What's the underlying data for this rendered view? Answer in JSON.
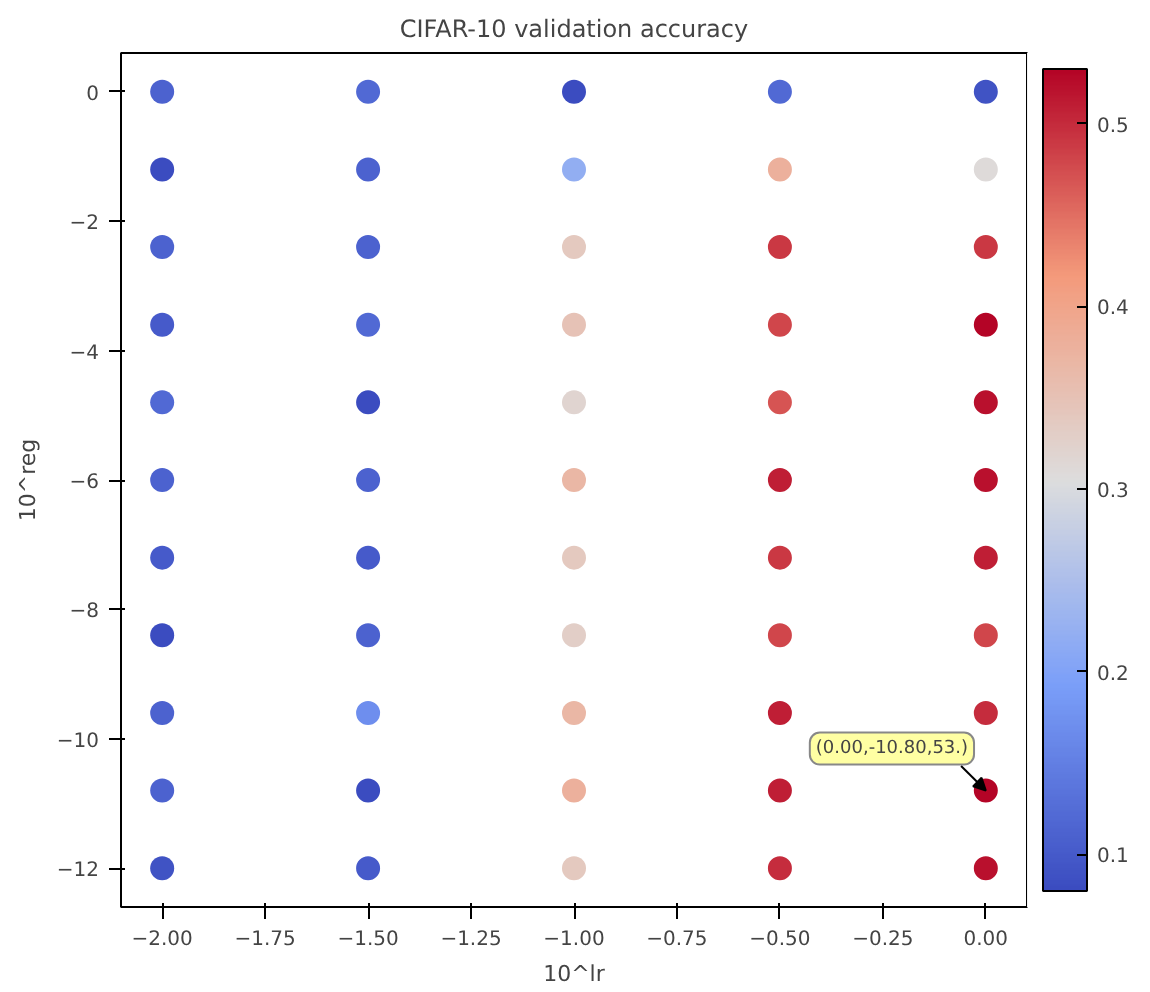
{
  "chart_data": {
    "type": "scatter",
    "title": "CIFAR-10 validation accuracy",
    "xlabel": "10^lr",
    "ylabel": "10^reg",
    "x": [
      -2,
      -2,
      -2,
      -2,
      -2,
      -2,
      -2,
      -2,
      -2,
      -2,
      -2,
      -1.5,
      -1.5,
      -1.5,
      -1.5,
      -1.5,
      -1.5,
      -1.5,
      -1.5,
      -1.5,
      -1.5,
      -1.5,
      -1,
      -1,
      -1,
      -1,
      -1,
      -1,
      -1,
      -1,
      -1,
      -1,
      -1,
      -0.5,
      -0.5,
      -0.5,
      -0.5,
      -0.5,
      -0.5,
      -0.5,
      -0.5,
      -0.5,
      -0.5,
      -0.5,
      0,
      0,
      0,
      0,
      0,
      0,
      0,
      0,
      0,
      0,
      0
    ],
    "values": [
      0,
      -1.2,
      -2.4,
      -3.6,
      -4.8,
      -6,
      -7.2,
      -8.4,
      -9.6,
      -10.8,
      -12,
      0,
      -1.2,
      -2.4,
      -3.6,
      -4.8,
      -6,
      -7.2,
      -8.4,
      -9.6,
      -10.8,
      -12,
      0,
      -1.2,
      -2.4,
      -3.6,
      -4.8,
      -6,
      -7.2,
      -8.4,
      -9.6,
      -10.8,
      -12,
      0,
      -1.2,
      -2.4,
      -3.6,
      -4.8,
      -6,
      -7.2,
      -8.4,
      -9.6,
      -10.8,
      -12,
      0,
      -1.2,
      -2.4,
      -3.6,
      -4.8,
      -6,
      -7.2,
      -8.4,
      -9.6,
      -10.8,
      -12
    ],
    "cvalues": [
      0.11,
      0.08,
      0.11,
      0.1,
      0.12,
      0.11,
      0.1,
      0.08,
      0.11,
      0.11,
      0.09,
      0.12,
      0.11,
      0.11,
      0.12,
      0.08,
      0.11,
      0.1,
      0.11,
      0.17,
      0.08,
      0.1,
      0.08,
      0.22,
      0.34,
      0.35,
      0.32,
      0.37,
      0.34,
      0.33,
      0.37,
      0.38,
      0.34,
      0.12,
      0.38,
      0.49,
      0.48,
      0.47,
      0.51,
      0.49,
      0.48,
      0.51,
      0.51,
      0.5,
      0.09,
      0.31,
      0.49,
      0.53,
      0.52,
      0.52,
      0.51,
      0.48,
      0.5,
      0.53,
      0.52
    ],
    "clim": [
      0.08,
      0.53
    ],
    "cticks": [
      0.1,
      0.2,
      0.3,
      0.4,
      0.5
    ],
    "xlim": [
      -2.1,
      0.1
    ],
    "ylim": [
      -12.6,
      0.6
    ],
    "xticks": [
      {
        "value": -2,
        "label": "−2.00"
      },
      {
        "value": -1.75,
        "label": "−1.75"
      },
      {
        "value": -1.5,
        "label": "−1.50"
      },
      {
        "value": -1.25,
        "label": "−1.25"
      },
      {
        "value": -1,
        "label": "−1.00"
      },
      {
        "value": -0.75,
        "label": "−0.75"
      },
      {
        "value": -0.5,
        "label": "−0.50"
      },
      {
        "value": -0.25,
        "label": "−0.25"
      },
      {
        "value": 0,
        "label": "0.00"
      }
    ],
    "yticks": [
      {
        "value": -12,
        "label": "−12"
      },
      {
        "value": -10,
        "label": "−10"
      },
      {
        "value": -8,
        "label": "−8"
      },
      {
        "value": -6,
        "label": "−6"
      },
      {
        "value": -4,
        "label": "−4"
      },
      {
        "value": -2,
        "label": "−2"
      },
      0
    ],
    "annotations": [
      {
        "text": "(0.00,-10.80,53.)",
        "x": 0,
        "y": -10.8
      }
    ],
    "marker": "circle",
    "grid": false
  }
}
